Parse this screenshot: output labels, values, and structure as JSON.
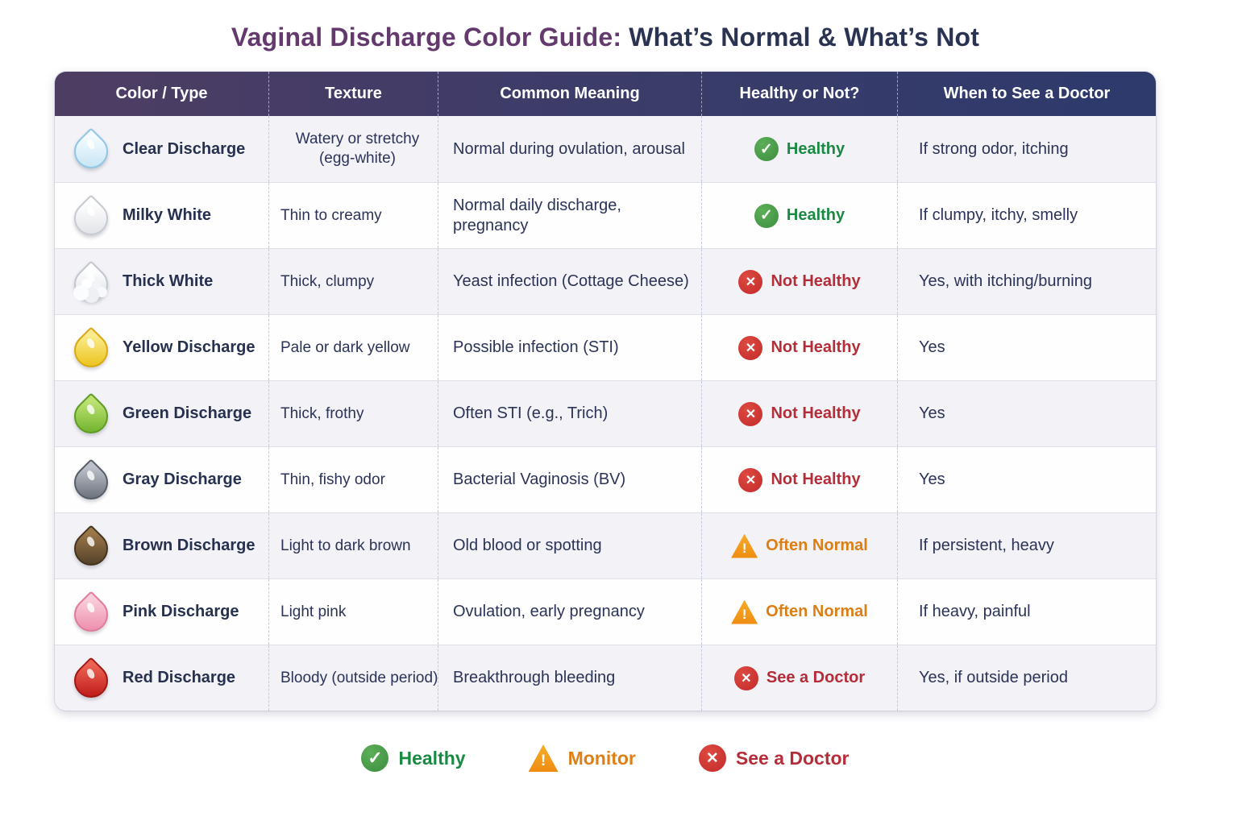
{
  "title": {
    "highlight": "Vaginal Discharge Color Guide:",
    "rest": " What’s Normal & What’s Not",
    "highlight_color": "#643a6e",
    "rest_color": "#2a3352"
  },
  "table": {
    "headers": [
      "Color / Type",
      "Texture",
      "Common Meaning",
      "Healthy or Not?",
      "When to See a Doctor"
    ],
    "rows": [
      {
        "type": "Clear Discharge",
        "drop_icon": "clear-droplet-icon",
        "drop_colors": {
          "top": "#f4fbfe",
          "bottom": "#c9e6f5",
          "border": "#8fc6e5"
        },
        "texture": "Watery or stretchy (egg-white)",
        "meaning": "Normal during ovulation, arousal",
        "status": {
          "label": "Healthy",
          "kind": "check",
          "icon": "healthy-check-icon",
          "color": "#1a8a43"
        },
        "doctor": "If strong odor, itching"
      },
      {
        "type": "Milky White",
        "drop_icon": "milky-white-droplet-icon",
        "drop_colors": {
          "top": "#ffffff",
          "bottom": "#e2e4e8",
          "border": "#c6cad1"
        },
        "texture": "Thin to creamy",
        "meaning": "Normal daily discharge, pregnancy",
        "status": {
          "label": "Healthy",
          "kind": "check",
          "icon": "healthy-check-icon",
          "color": "#1a8a43"
        },
        "doctor": "If clumpy, itchy, smelly"
      },
      {
        "type": "Thick White",
        "drop_icon": "thick-white-clumpy-droplet-icon",
        "drop_colors": {
          "top": "#ffffff",
          "bottom": "#dde0e5",
          "border": "#c2c6ce"
        },
        "drop_clumpy": true,
        "texture": "Thick, clumpy",
        "meaning": "Yeast infection (Cottage Cheese)",
        "status": {
          "label": "Not Healthy",
          "kind": "x",
          "icon": "not-healthy-x-icon",
          "color": "#b42d38"
        },
        "doctor": "Yes, with itching/burning"
      },
      {
        "type": "Yellow Discharge",
        "drop_icon": "yellow-droplet-icon",
        "drop_colors": {
          "top": "#fbeb8e",
          "bottom": "#ecc51f",
          "border": "#d8a912"
        },
        "texture": "Pale or dark yellow",
        "meaning": "Possible infection (STI)",
        "status": {
          "label": "Not Healthy",
          "kind": "x",
          "icon": "not-healthy-x-icon",
          "color": "#b42d38"
        },
        "doctor": "Yes"
      },
      {
        "type": "Green Discharge",
        "drop_icon": "green-droplet-icon",
        "drop_colors": {
          "top": "#bde272",
          "bottom": "#74b531",
          "border": "#5e9c23"
        },
        "texture": "Thick, frothy",
        "meaning": "Often STI (e.g., Trich)",
        "status": {
          "label": "Not Healthy",
          "kind": "x",
          "icon": "not-healthy-x-icon",
          "color": "#b42d38"
        },
        "doctor": "Yes"
      },
      {
        "type": "Gray Discharge",
        "drop_icon": "gray-droplet-icon",
        "drop_colors": {
          "top": "#bcc1c9",
          "bottom": "#6d737d",
          "border": "#575d67"
        },
        "texture": "Thin, fishy odor",
        "meaning": "Bacterial Vaginosis (BV)",
        "status": {
          "label": "Not Healthy",
          "kind": "x",
          "icon": "not-healthy-x-icon",
          "color": "#b42d38"
        },
        "doctor": "Yes"
      },
      {
        "type": "Brown Discharge",
        "drop_icon": "brown-droplet-icon",
        "drop_colors": {
          "top": "#9a7649",
          "bottom": "#55422a",
          "border": "#44331d"
        },
        "texture": "Light to dark brown",
        "meaning": "Old blood or spotting",
        "status": {
          "label": "Often Normal",
          "kind": "warn",
          "icon": "warning-triangle-icon",
          "color": "#dd7e14"
        },
        "doctor": "If persistent, heavy"
      },
      {
        "type": "Pink Discharge",
        "drop_icon": "pink-droplet-icon",
        "drop_colors": {
          "top": "#f9cdda",
          "bottom": "#ee90ae",
          "border": "#e07a9b"
        },
        "texture": "Light pink",
        "meaning": "Ovulation, early pregnancy",
        "status": {
          "label": "Often Normal",
          "kind": "warn",
          "icon": "warning-triangle-icon",
          "color": "#dd7e14"
        },
        "doctor": "If heavy, painful"
      },
      {
        "type": "Red Discharge",
        "drop_icon": "red-droplet-icon",
        "drop_colors": {
          "top": "#ec6152",
          "bottom": "#c01d1a",
          "border": "#a21713"
        },
        "texture": "Bloody (outside period)",
        "texture_nowrap": true,
        "meaning": "Breakthrough bleeding",
        "status": {
          "label": "See a Doctor",
          "kind": "x",
          "icon": "see-a-doctor-x-icon",
          "color": "#b42d38"
        },
        "doctor": "Yes, if outside period"
      }
    ]
  },
  "legend": [
    {
      "label": "Healthy",
      "kind": "check",
      "icon": "healthy-check-icon",
      "color": "#1a8a43"
    },
    {
      "label": "Monitor",
      "kind": "warn",
      "icon": "monitor-warning-triangle-icon",
      "color": "#df7f16"
    },
    {
      "label": "See a Doctor",
      "kind": "x",
      "icon": "see-a-doctor-x-icon",
      "color": "#b42d38"
    }
  ]
}
